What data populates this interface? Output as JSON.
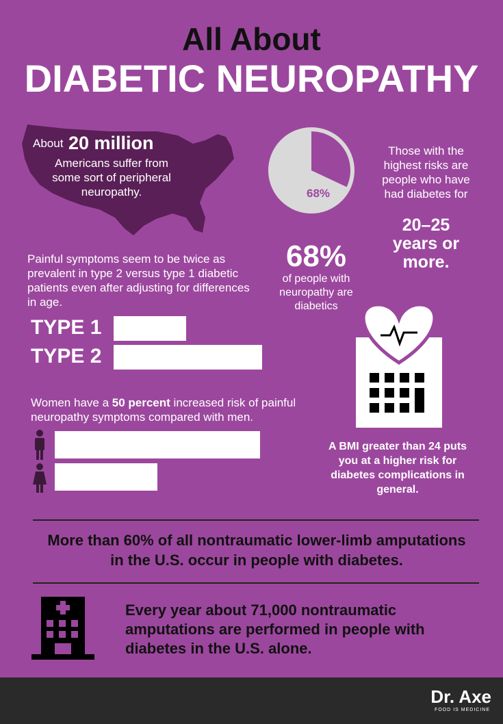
{
  "header": {
    "line1": "All About",
    "line2": "DIABETIC NEUROPATHY"
  },
  "us_stat": {
    "prefix": "About",
    "highlight": "20 million",
    "text": "Americans suffer from some sort of peripheral neuropathy."
  },
  "pie": {
    "value": 68,
    "label": "68%"
  },
  "pie_stat": {
    "big": "68%",
    "text": "of people with neuropathy are diabetics"
  },
  "risk": {
    "text": "Those with the highest risks are people who have had diabetes for",
    "highlight": "20–25 years or more."
  },
  "types": {
    "text": "Painful symptoms seem to be twice as prevalent in type 2 versus type 1 diabetic patients even after adjusting for differences in age.",
    "labels": [
      "TYPE 1",
      "TYPE 2"
    ]
  },
  "women": {
    "prefix": "Women have a",
    "highlight": "50 percent",
    "text": "increased risk of painful neuropathy symptoms compared with men."
  },
  "bmi": {
    "text": "A BMI greater than 24 puts you at a higher risk for diabetes complications in general."
  },
  "amputations": {
    "text": "More than 60% of all nontraumatic lower-limb amputations in the U.S. occur in people with diabetes."
  },
  "yearly": {
    "text": "Every year about 71,000 nontraumatic amputations are performed in people with diabetes in the U.S. alone."
  },
  "footer": {
    "brand": "Dr. Axe",
    "tagline": "FOOD IS MEDICINE"
  }
}
